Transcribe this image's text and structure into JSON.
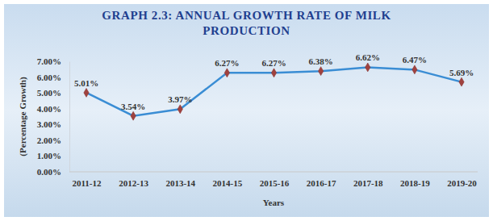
{
  "chart_data": {
    "type": "line",
    "title": "GRAPH 2.3: ANNUAL GROWTH RATE OF MILK PRODUCTION",
    "x_label": "Years",
    "y_label": "(Percentage Growth)",
    "categories": [
      "2011-12",
      "2012-13",
      "2013-14",
      "2014-15",
      "2015-16",
      "2016-17",
      "2017-18",
      "2018-19",
      "2019-20"
    ],
    "values": [
      5.01,
      3.54,
      3.97,
      6.27,
      6.27,
      6.38,
      6.62,
      6.47,
      5.69
    ],
    "value_labels": [
      "5.01%",
      "3.54%",
      "3.97%",
      "6.27%",
      "6.27%",
      "6.38%",
      "6.62%",
      "6.47%",
      "5.69%"
    ],
    "color": "#3a8dd4",
    "marker": "diamond",
    "line_style": "solid",
    "data_labels": true,
    "grid": false,
    "ylim": [
      0,
      7
    ],
    "yticks": [
      {
        "value": 0,
        "label": "0.00%"
      },
      {
        "value": 1,
        "label": "1.00%"
      },
      {
        "value": 2,
        "label": "2.00%"
      },
      {
        "value": 3,
        "label": "3.00%"
      },
      {
        "value": 4,
        "label": "4.00%"
      },
      {
        "value": 5,
        "label": "5.00%"
      },
      {
        "value": 6,
        "label": "6.00%"
      },
      {
        "value": 7,
        "label": "7.00%"
      }
    ]
  }
}
